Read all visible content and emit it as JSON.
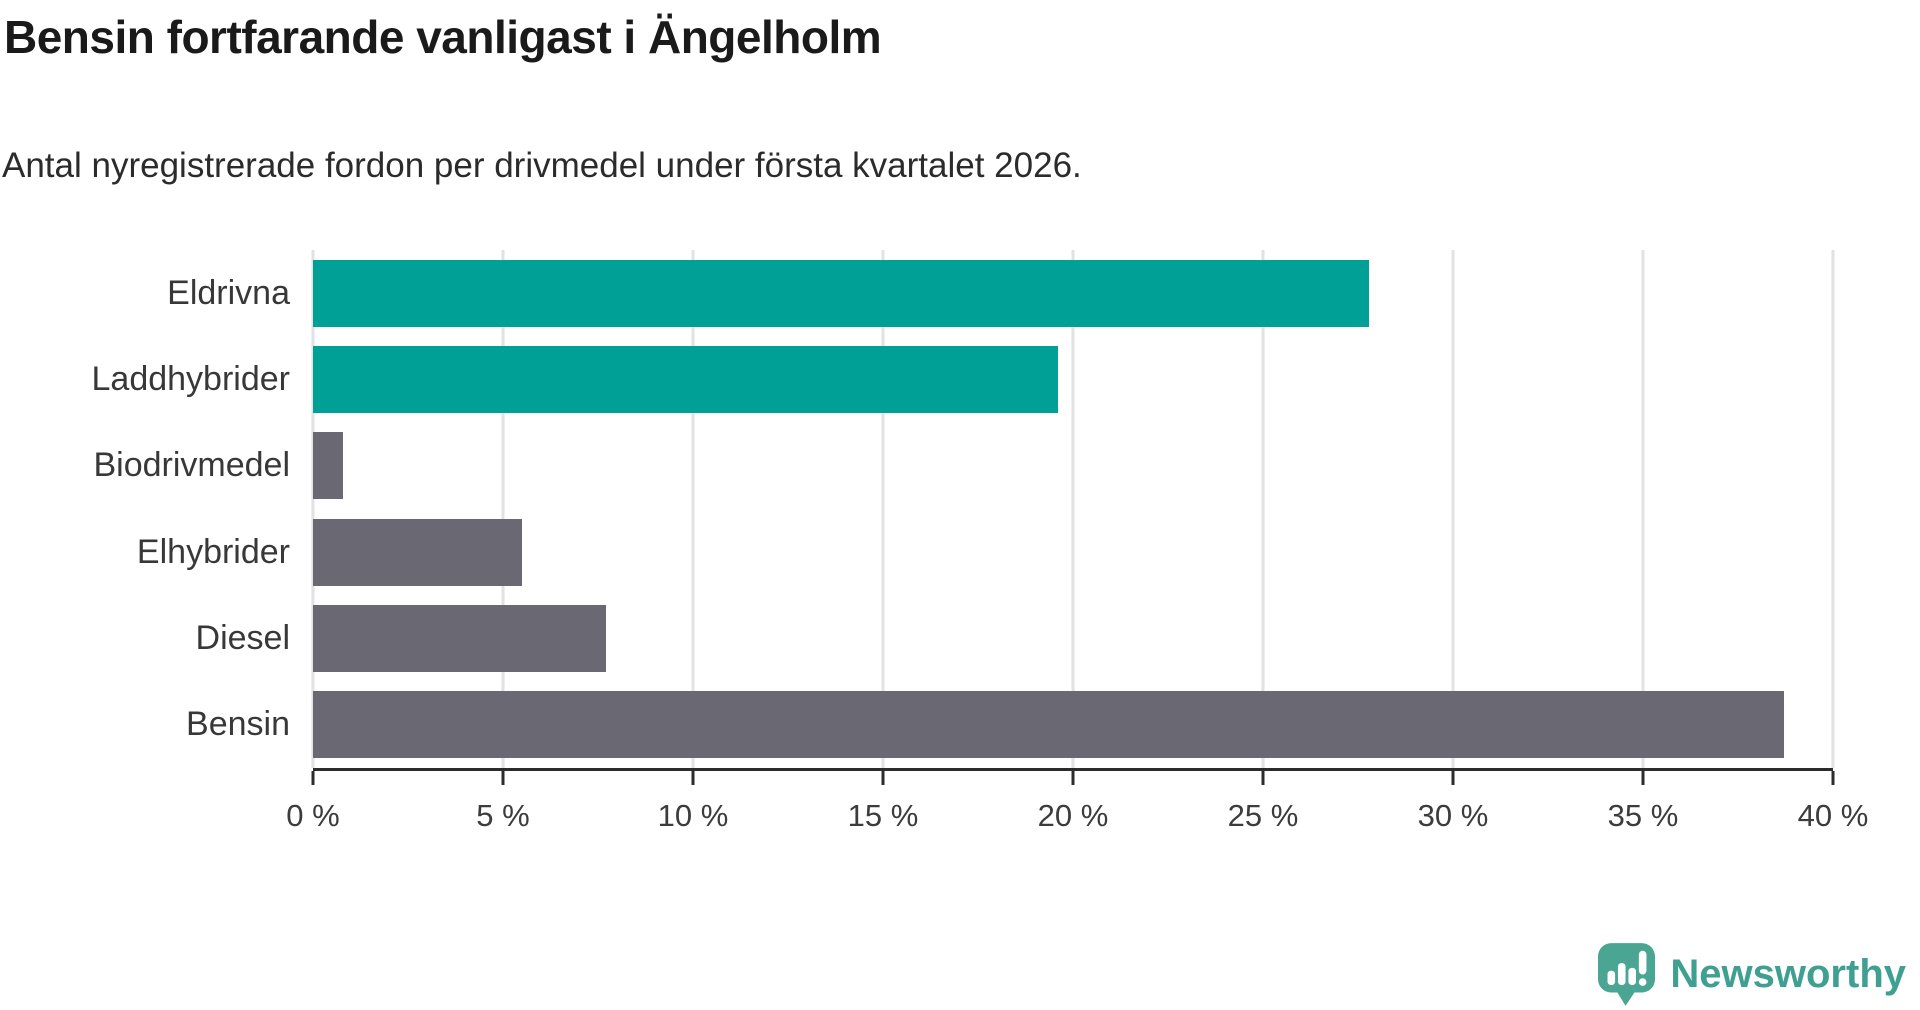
{
  "header": {
    "title": "Bensin fortfarande vanligast i Ängelholm",
    "subtitle": "Antal nyregistrerade fordon per drivmedel under första kvartalet 2026."
  },
  "chart_data": {
    "type": "bar",
    "orientation": "horizontal",
    "title": "Bensin fortfarande vanligast i Ängelholm",
    "subtitle": "Antal nyregistrerade fordon per drivmedel under första kvartalet 2026.",
    "categories": [
      "Eldrivna",
      "Laddhybrider",
      "Biodrivmedel",
      "Elhybrider",
      "Diesel",
      "Bensin"
    ],
    "values": [
      27.8,
      19.6,
      0.8,
      5.5,
      7.7,
      38.7
    ],
    "unit": "%",
    "bar_colors": [
      "#00a096",
      "#00a096",
      "#6a6872",
      "#6a6872",
      "#6a6872",
      "#6a6872"
    ],
    "xlim": [
      0,
      40
    ],
    "x_ticks": [
      0,
      5,
      10,
      15,
      20,
      25,
      30,
      35,
      40
    ],
    "x_tick_labels": [
      "0 %",
      "5 %",
      "10 %",
      "15 %",
      "20 %",
      "25 %",
      "30 %",
      "35 %",
      "40 %"
    ],
    "grid": "vertical-gridlines-on",
    "legend": "none"
  },
  "colors": {
    "accent_teal": "#00a096",
    "neutral_gray": "#6a6872",
    "gridline": "#e2e2e2",
    "axis_line": "#2c2c2c",
    "text_dark": "#1a1a1a"
  },
  "branding": {
    "name": "Newsworthy",
    "logo_icon": "speech-bubble-bar-chart-exclamation-icon",
    "logo_color": "#4ba593",
    "text_color": "#3fa092"
  }
}
